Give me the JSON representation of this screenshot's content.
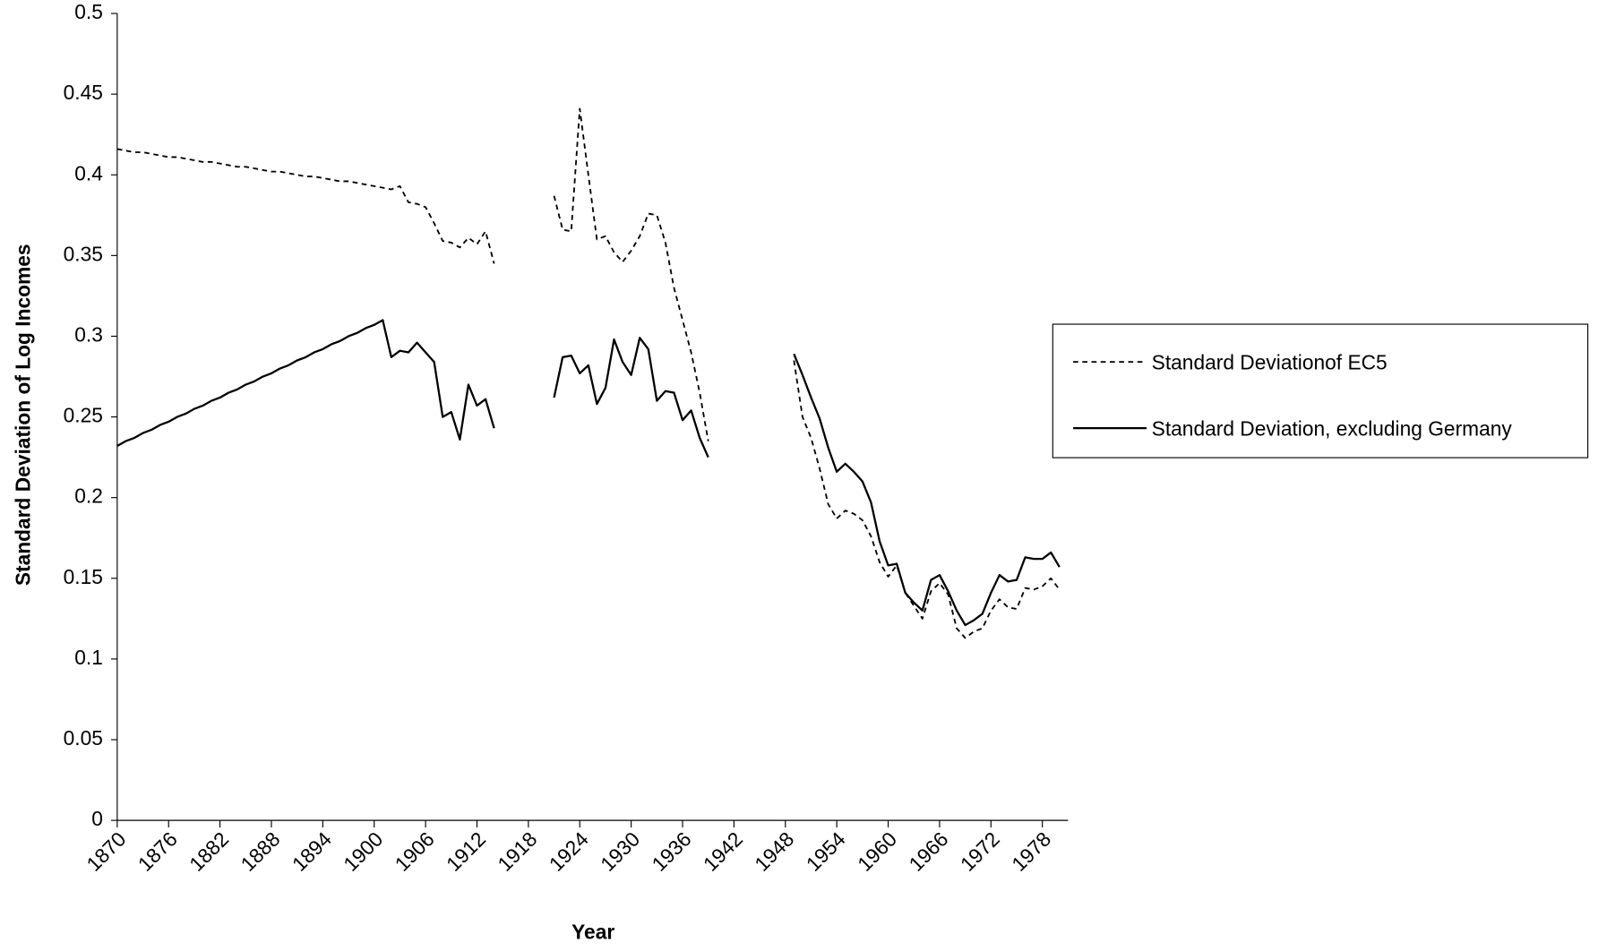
{
  "chart_data": {
    "type": "line",
    "xlabel": "Year",
    "ylabel": "Standard Deviation of Log Incomes",
    "x": [
      1870,
      1871,
      1872,
      1873,
      1874,
      1875,
      1876,
      1877,
      1878,
      1879,
      1880,
      1881,
      1882,
      1883,
      1884,
      1885,
      1886,
      1887,
      1888,
      1889,
      1890,
      1891,
      1892,
      1893,
      1894,
      1895,
      1896,
      1897,
      1898,
      1899,
      1900,
      1901,
      1902,
      1903,
      1904,
      1905,
      1906,
      1907,
      1908,
      1909,
      1910,
      1911,
      1912,
      1913,
      1914,
      1915,
      1916,
      1917,
      1918,
      1919,
      1920,
      1921,
      1922,
      1923,
      1924,
      1925,
      1926,
      1927,
      1928,
      1929,
      1930,
      1931,
      1932,
      1933,
      1934,
      1935,
      1936,
      1937,
      1938,
      1939,
      1940,
      1941,
      1942,
      1943,
      1944,
      1945,
      1946,
      1947,
      1948,
      1949,
      1950,
      1951,
      1952,
      1953,
      1954,
      1955,
      1956,
      1957,
      1958,
      1959,
      1960,
      1961,
      1962,
      1963,
      1964,
      1965,
      1966,
      1967,
      1968,
      1969,
      1970,
      1971,
      1972,
      1973,
      1974,
      1975,
      1976,
      1977,
      1978,
      1979,
      1980
    ],
    "series": [
      {
        "name": "Standard Deviationof EC5",
        "color": "#000000",
        "style": "dashed",
        "values": [
          0.416,
          0.415,
          0.414,
          0.414,
          0.413,
          0.412,
          0.411,
          0.411,
          0.41,
          0.409,
          0.408,
          0.408,
          0.407,
          0.406,
          0.405,
          0.405,
          0.404,
          0.403,
          0.402,
          0.402,
          0.401,
          0.4,
          0.399,
          0.399,
          0.398,
          0.397,
          0.396,
          0.396,
          0.395,
          0.394,
          0.393,
          0.392,
          0.391,
          0.393,
          0.383,
          0.382,
          0.38,
          0.37,
          0.359,
          0.358,
          0.355,
          0.361,
          0.357,
          0.365,
          0.345,
          null,
          null,
          null,
          null,
          null,
          null,
          0.387,
          0.366,
          0.365,
          0.441,
          0.4,
          0.36,
          0.362,
          0.352,
          0.346,
          0.353,
          0.362,
          0.376,
          0.375,
          0.358,
          0.33,
          0.31,
          0.29,
          0.265,
          0.235,
          null,
          null,
          null,
          null,
          null,
          null,
          null,
          null,
          null,
          0.285,
          0.25,
          0.237,
          0.218,
          0.196,
          0.187,
          0.192,
          0.19,
          0.186,
          0.176,
          0.16,
          0.151,
          0.158,
          0.141,
          0.133,
          0.125,
          0.142,
          0.147,
          0.14,
          0.119,
          0.113,
          0.117,
          0.119,
          0.13,
          0.137,
          0.132,
          0.131,
          0.144,
          0.143,
          0.145,
          0.15,
          0.143
        ]
      },
      {
        "name": "Standard Deviation, excluding Germany",
        "color": "#000000",
        "style": "solid",
        "values": [
          0.232,
          0.235,
          0.237,
          0.24,
          0.242,
          0.245,
          0.247,
          0.25,
          0.252,
          0.255,
          0.257,
          0.26,
          0.262,
          0.265,
          0.267,
          0.27,
          0.272,
          0.275,
          0.277,
          0.28,
          0.282,
          0.285,
          0.287,
          0.29,
          0.292,
          0.295,
          0.297,
          0.3,
          0.302,
          0.305,
          0.307,
          0.31,
          0.287,
          0.291,
          0.29,
          0.296,
          0.29,
          0.284,
          0.25,
          0.253,
          0.236,
          0.27,
          0.257,
          0.261,
          0.243,
          null,
          null,
          null,
          null,
          null,
          null,
          0.262,
          0.287,
          0.288,
          0.277,
          0.282,
          0.258,
          0.268,
          0.298,
          0.284,
          0.276,
          0.299,
          0.292,
          0.26,
          0.266,
          0.265,
          0.248,
          0.254,
          0.237,
          0.225,
          null,
          null,
          null,
          null,
          null,
          null,
          null,
          null,
          null,
          0.289,
          0.276,
          0.262,
          0.249,
          0.231,
          0.216,
          0.221,
          0.216,
          0.21,
          0.197,
          0.173,
          0.158,
          0.159,
          0.141,
          0.135,
          0.13,
          0.149,
          0.152,
          0.142,
          0.13,
          0.121,
          0.124,
          0.128,
          0.141,
          0.152,
          0.148,
          0.149,
          0.163,
          0.162,
          0.162,
          0.166,
          0.157
        ]
      }
    ],
    "xlim": [
      1870,
      1981
    ],
    "xticks": [
      1870,
      1876,
      1882,
      1888,
      1894,
      1900,
      1906,
      1912,
      1918,
      1924,
      1930,
      1936,
      1942,
      1948,
      1954,
      1960,
      1966,
      1972,
      1978
    ],
    "ylim": [
      0,
      0.5
    ],
    "yticks": [
      0,
      0.05,
      0.1,
      0.15,
      0.2,
      0.25,
      0.3,
      0.35,
      0.4,
      0.45,
      0.5
    ],
    "grid": false,
    "legend": "right"
  }
}
